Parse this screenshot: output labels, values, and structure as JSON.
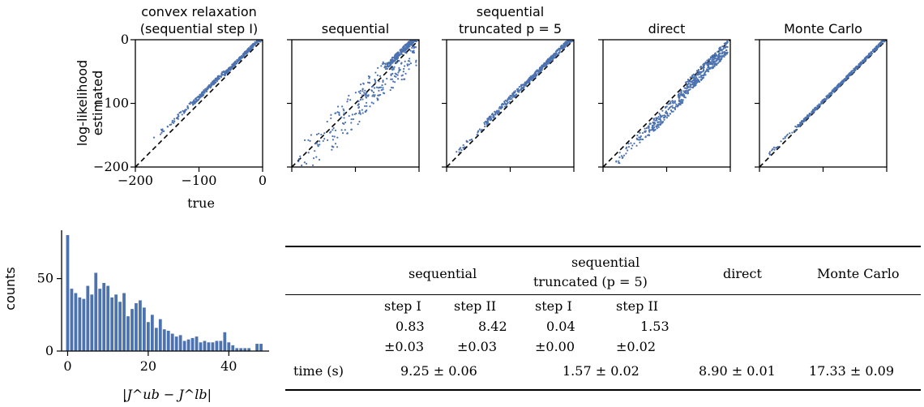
{
  "scatter_panels": {
    "ylabel_line1": "log-likelihood",
    "ylabel_line2": "estimated",
    "xlabel": "true",
    "ticks": [
      "−200",
      "−100",
      "0"
    ]
  },
  "histogram": {
    "ylabel": "counts",
    "xlabel": "|J^ub − J^lb|",
    "yticks": [
      "0",
      "50"
    ],
    "xticks": [
      "0",
      "20",
      "40"
    ]
  },
  "table": {
    "headers": {
      "sequential": "sequential",
      "truncated_line1": "sequential",
      "truncated_line2": "truncated (p = 5)",
      "direct": "direct",
      "monte_carlo": "Monte Carlo"
    },
    "step_labels": [
      "step I",
      "step II",
      "step I",
      "step II"
    ],
    "step_values": [
      "0.83",
      "8.42",
      "0.04",
      "1.53"
    ],
    "step_errors": [
      "±0.03",
      "±0.03",
      "±0.00",
      "±0.02"
    ],
    "time_label": "time (s)",
    "times": {
      "sequential": "9.25 ± 0.06",
      "truncated": "1.57 ± 0.02",
      "direct": "8.90 ± 0.01",
      "monte_carlo": "17.33 ± 0.09"
    }
  },
  "colors": {
    "points": "#4c72b0",
    "diagonal": "#000000",
    "bars": "#4c72b0"
  },
  "chart_data": [
    {
      "type": "scatter",
      "title": "convex relaxation (sequential step I)",
      "title_lines": [
        "convex relaxation",
        "(sequential step I)"
      ],
      "xlabel": "true",
      "ylabel": "log-likelihood estimated",
      "xlim": [
        -200,
        0
      ],
      "ylim": [
        -200,
        0
      ],
      "reference_line": "y = x (dashed)",
      "bands": [
        {
          "x0": -175,
          "x1": -150,
          "off_lo": 10,
          "off_hi": 18,
          "n": 8
        },
        {
          "x0": -150,
          "x1": -110,
          "off_lo": 8,
          "off_hi": 16,
          "n": 40
        },
        {
          "x0": -110,
          "x1": -60,
          "off_lo": 6,
          "off_hi": 13,
          "n": 160
        },
        {
          "x0": -60,
          "x1": -3,
          "off_lo": 3,
          "off_hi": 9,
          "n": 260
        }
      ]
    },
    {
      "type": "scatter",
      "title": "sequential",
      "title_lines": [
        "sequential"
      ],
      "xlim": [
        -200,
        0
      ],
      "ylim": [
        -200,
        0
      ],
      "reference_line": "y = x (dashed)",
      "bands": [
        {
          "x0": -190,
          "x1": -140,
          "off_lo": -35,
          "off_hi": 25,
          "n": 30
        },
        {
          "x0": -140,
          "x1": -90,
          "off_lo": -40,
          "off_hi": 25,
          "n": 70
        },
        {
          "x0": -90,
          "x1": -50,
          "off_lo": -30,
          "off_hi": 22,
          "n": 90
        },
        {
          "x0": -50,
          "x1": -4,
          "off_lo": 4,
          "off_hi": 14,
          "n": 240
        },
        {
          "x0": -45,
          "x1": -4,
          "off_lo": -40,
          "off_hi": 4,
          "n": 70
        }
      ]
    },
    {
      "type": "scatter",
      "title": "sequential truncated p = 5",
      "title_lines": [
        "sequential",
        "truncated p = 5"
      ],
      "xlim": [
        -200,
        0
      ],
      "ylim": [
        -200,
        0
      ],
      "reference_line": "y = x (dashed)",
      "bands": [
        {
          "x0": -185,
          "x1": -140,
          "off_lo": 2,
          "off_hi": 12,
          "n": 25
        },
        {
          "x0": -140,
          "x1": -80,
          "off_lo": 3,
          "off_hi": 12,
          "n": 130
        },
        {
          "x0": -80,
          "x1": -3,
          "off_lo": 2,
          "off_hi": 10,
          "n": 320
        }
      ]
    },
    {
      "type": "scatter",
      "title": "direct",
      "title_lines": [
        "direct"
      ],
      "xlim": [
        -200,
        0
      ],
      "ylim": [
        -200,
        0
      ],
      "reference_line": "y = x (dashed)",
      "bands": [
        {
          "x0": -180,
          "x1": -130,
          "off_lo": -20,
          "off_hi": -3,
          "n": 45
        },
        {
          "x0": -130,
          "x1": -70,
          "off_lo": -25,
          "off_hi": -3,
          "n": 180
        },
        {
          "x0": -70,
          "x1": -4,
          "off_lo": -18,
          "off_hi": 4,
          "n": 320
        }
      ]
    },
    {
      "type": "scatter",
      "title": "Monte Carlo",
      "title_lines": [
        "Monte Carlo"
      ],
      "xlim": [
        -200,
        0
      ],
      "ylim": [
        -200,
        0
      ],
      "reference_line": "y = x (dashed)",
      "bands": [
        {
          "x0": -185,
          "x1": -140,
          "off_lo": 1,
          "off_hi": 8,
          "n": 25
        },
        {
          "x0": -140,
          "x1": -3,
          "off_lo": 1,
          "off_hi": 6,
          "n": 460
        }
      ]
    },
    {
      "type": "bar",
      "xlabel": "|J^ub − J^lb|",
      "ylabel": "counts",
      "xlim": [
        -1.5,
        50
      ],
      "ylim": [
        0,
        80
      ],
      "bin_width": 1,
      "x": [
        0,
        1,
        2,
        3,
        4,
        5,
        6,
        7,
        8,
        9,
        10,
        11,
        12,
        13,
        14,
        15,
        16,
        17,
        18,
        19,
        20,
        21,
        22,
        23,
        24,
        25,
        26,
        27,
        28,
        29,
        30,
        31,
        32,
        33,
        34,
        35,
        36,
        37,
        38,
        39,
        40,
        41,
        42,
        43,
        44,
        45,
        47,
        48
      ],
      "values": [
        80,
        43,
        40,
        37,
        36,
        45,
        39,
        54,
        43,
        47,
        45,
        37,
        39,
        34,
        40,
        24,
        29,
        33,
        35,
        30,
        20,
        25,
        16,
        22,
        15,
        14,
        12,
        10,
        11,
        7,
        8,
        9,
        10,
        6,
        7,
        6,
        6,
        7,
        7,
        13,
        6,
        4,
        2,
        2,
        2,
        2,
        5,
        5
      ]
    }
  ]
}
